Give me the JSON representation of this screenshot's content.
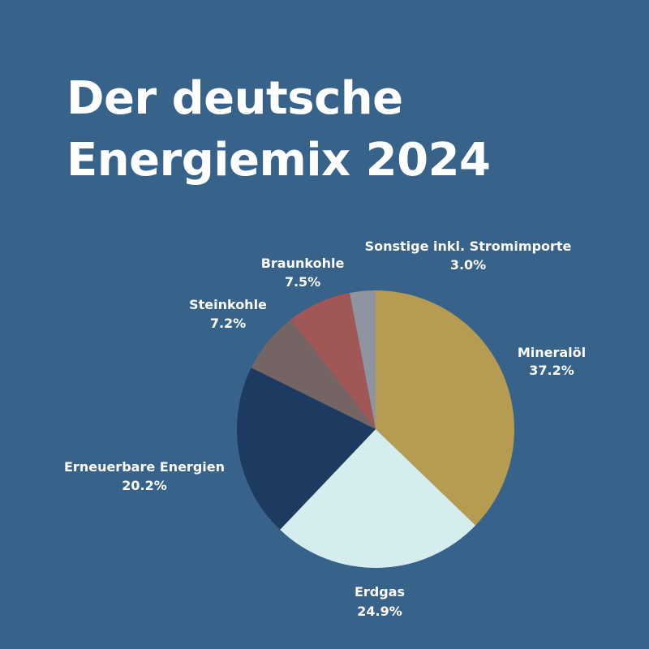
{
  "title": {
    "line1": "Der deutsche",
    "line2": "Energiemix 2024"
  },
  "chart_data": {
    "type": "pie",
    "title": "Der deutsche Energiemix 2024",
    "categories": [
      "Mineralöl",
      "Erdgas",
      "Erneuerbare Energien",
      "Steinkohle",
      "Braunkohle",
      "Sonstige inkl. Stromimporte"
    ],
    "values": [
      37.2,
      24.9,
      20.2,
      7.2,
      7.5,
      3.0
    ],
    "value_labels": [
      "37.2%",
      "24.9%",
      "20.2%",
      "7.2%",
      "7.5%",
      "3.0%"
    ],
    "colors": [
      "#b59c50",
      "#d6edf0",
      "#1d3b60",
      "#746564",
      "#a05756",
      "#8e95a0"
    ],
    "direction": "clockwise",
    "start": "top"
  }
}
